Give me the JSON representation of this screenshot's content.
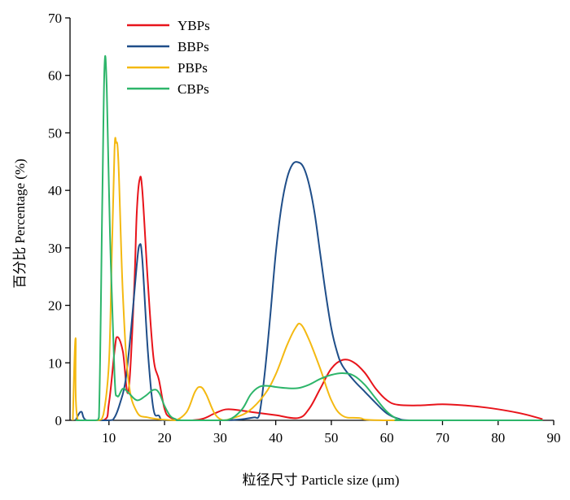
{
  "chart_data": {
    "type": "line",
    "title": "",
    "xlabel": "粒径尺寸 Particle size (μm)",
    "ylabel": "百分比 Percentage (%)",
    "xlim": [
      3,
      90
    ],
    "ylim": [
      0,
      70
    ],
    "x_ticks": [
      10,
      20,
      30,
      40,
      50,
      60,
      70,
      80,
      90
    ],
    "y_ticks": [
      0,
      10,
      20,
      30,
      40,
      50,
      60,
      70
    ],
    "grid": false,
    "legend_position": "top-left",
    "series": [
      {
        "name": "YBPs",
        "color": "#e8141b",
        "points": [
          [
            4,
            0
          ],
          [
            9,
            0
          ],
          [
            10,
            3
          ],
          [
            11,
            12
          ],
          [
            11.5,
            14.5
          ],
          [
            12.5,
            12
          ],
          [
            13.5,
            5
          ],
          [
            14.5,
            22
          ],
          [
            15,
            36
          ],
          [
            15.5,
            41.8
          ],
          [
            16,
            40
          ],
          [
            17,
            24
          ],
          [
            18,
            11
          ],
          [
            19,
            7
          ],
          [
            20,
            2
          ],
          [
            21,
            0.5
          ],
          [
            23,
            0
          ],
          [
            25,
            0
          ],
          [
            27,
            0.3
          ],
          [
            29,
            1.2
          ],
          [
            31,
            1.9
          ],
          [
            33,
            1.8
          ],
          [
            36,
            1.4
          ],
          [
            40,
            0.9
          ],
          [
            44,
            0.4
          ],
          [
            46,
            2
          ],
          [
            48,
            5.5
          ],
          [
            50,
            9
          ],
          [
            52,
            10.5
          ],
          [
            54,
            10.1
          ],
          [
            56,
            8.3
          ],
          [
            58,
            5.5
          ],
          [
            60,
            3.5
          ],
          [
            62,
            2.7
          ],
          [
            66,
            2.6
          ],
          [
            70,
            2.8
          ],
          [
            74,
            2.6
          ],
          [
            78,
            2.2
          ],
          [
            82,
            1.6
          ],
          [
            85,
            1.0
          ],
          [
            88,
            0.2
          ]
        ]
      },
      {
        "name": "BBPs",
        "color": "#1f4e89",
        "points": [
          [
            4,
            0
          ],
          [
            5,
            1.5
          ],
          [
            6,
            0
          ],
          [
            10,
            0
          ],
          [
            11,
            0.5
          ],
          [
            12,
            3
          ],
          [
            13,
            7
          ],
          [
            14,
            16
          ],
          [
            15,
            27
          ],
          [
            15.5,
            30.5
          ],
          [
            16,
            28
          ],
          [
            17,
            12
          ],
          [
            18,
            2
          ],
          [
            19,
            0.8
          ],
          [
            20,
            0
          ],
          [
            25,
            0
          ],
          [
            30,
            0
          ],
          [
            33,
            0.1
          ],
          [
            36,
            0.5
          ],
          [
            37,
            0.8
          ],
          [
            38,
            8
          ],
          [
            39,
            18
          ],
          [
            40,
            29
          ],
          [
            41,
            37
          ],
          [
            42,
            42
          ],
          [
            43,
            44.5
          ],
          [
            44,
            44.9
          ],
          [
            45,
            44
          ],
          [
            46,
            41
          ],
          [
            47,
            36
          ],
          [
            48,
            29
          ],
          [
            49,
            22
          ],
          [
            50,
            16
          ],
          [
            51,
            12
          ],
          [
            52,
            9.5
          ],
          [
            54,
            7
          ],
          [
            56,
            5
          ],
          [
            58,
            3
          ],
          [
            60,
            1.2
          ],
          [
            62,
            0.3
          ],
          [
            64,
            0
          ],
          [
            70,
            0
          ],
          [
            80,
            0
          ],
          [
            88,
            0
          ]
        ]
      },
      {
        "name": "PBPs",
        "color": "#f4b912",
        "points": [
          [
            3.5,
            0
          ],
          [
            4,
            14.3
          ],
          [
            4.4,
            0
          ],
          [
            8,
            0
          ],
          [
            9,
            1
          ],
          [
            10,
            10
          ],
          [
            10.5,
            28
          ],
          [
            11,
            47
          ],
          [
            11.3,
            48.3
          ],
          [
            11.7,
            45
          ],
          [
            12.5,
            22
          ],
          [
            13.5,
            7
          ],
          [
            15,
            1.5
          ],
          [
            17,
            0.5
          ],
          [
            20,
            0.1
          ],
          [
            22,
            0
          ],
          [
            24,
            1.5
          ],
          [
            25.5,
            5
          ],
          [
            26.5,
            5.8
          ],
          [
            27.5,
            4.5
          ],
          [
            29,
            1.2
          ],
          [
            30.5,
            0
          ],
          [
            32,
            0.3
          ],
          [
            35,
            1.5
          ],
          [
            38,
            4.5
          ],
          [
            40,
            8
          ],
          [
            42,
            13
          ],
          [
            43.5,
            16
          ],
          [
            44.5,
            16.7
          ],
          [
            46,
            14
          ],
          [
            48,
            9
          ],
          [
            50,
            3.5
          ],
          [
            52,
            0.8
          ],
          [
            55,
            0.4
          ],
          [
            60,
            0
          ],
          [
            88,
            0
          ]
        ]
      },
      {
        "name": "CBPs",
        "color": "#2db56a",
        "points": [
          [
            4,
            0
          ],
          [
            7.5,
            0
          ],
          [
            8.2,
            0.5
          ],
          [
            8.8,
            38
          ],
          [
            9.2,
            61.5
          ],
          [
            9.6,
            58
          ],
          [
            10.2,
            32
          ],
          [
            11,
            8
          ],
          [
            11.5,
            4.2
          ],
          [
            12.5,
            5.5
          ],
          [
            13.5,
            4.8
          ],
          [
            15,
            3.5
          ],
          [
            16.5,
            4.2
          ],
          [
            18,
            5.3
          ],
          [
            19,
            4.8
          ],
          [
            20,
            2.5
          ],
          [
            21,
            0.8
          ],
          [
            22,
            0.2
          ],
          [
            23,
            0
          ],
          [
            30,
            0
          ],
          [
            32,
            0.3
          ],
          [
            34,
            2
          ],
          [
            35.5,
            4.5
          ],
          [
            37,
            5.8
          ],
          [
            38.5,
            6.0
          ],
          [
            40,
            5.8
          ],
          [
            42,
            5.6
          ],
          [
            44,
            5.6
          ],
          [
            46,
            6.2
          ],
          [
            48,
            7.2
          ],
          [
            50,
            7.9
          ],
          [
            52,
            8.2
          ],
          [
            54,
            7.8
          ],
          [
            56,
            6.2
          ],
          [
            58,
            3.8
          ],
          [
            60,
            1.5
          ],
          [
            62,
            0.2
          ],
          [
            64,
            0
          ],
          [
            88,
            0
          ]
        ]
      }
    ]
  }
}
